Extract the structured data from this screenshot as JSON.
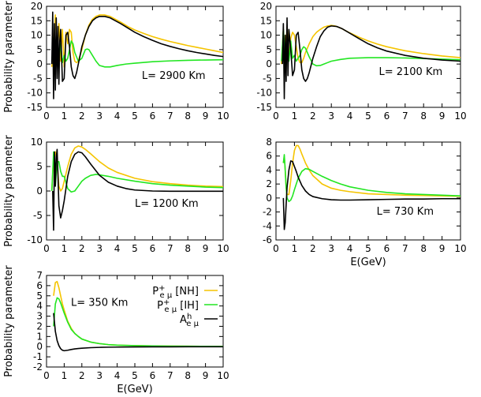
{
  "figure": {
    "ylabel": "Probability parameter",
    "xlabel": "E(GeV)"
  },
  "legend": {
    "entries": [
      {
        "name": "NH",
        "main": "P",
        "sup": "+",
        "sub": "e μ",
        "suffix": " [NH]",
        "color": "#f5c400"
      },
      {
        "name": "IH",
        "main": "P",
        "sup": "+",
        "sub": "e μ",
        "suffix": " [IH]",
        "color": "#22e622"
      },
      {
        "name": "A",
        "main": "A",
        "sup": "h",
        "sub": "e μ",
        "suffix": "",
        "color": "#000000"
      }
    ]
  },
  "chart_data": [
    {
      "type": "line",
      "panel_label": "L= 2900 Km",
      "L_km": 2900,
      "xlim": [
        0,
        10
      ],
      "ylim": [
        -15,
        20
      ],
      "xticks": [
        0,
        1,
        2,
        3,
        4,
        5,
        6,
        7,
        8,
        9,
        10
      ],
      "yticks": [
        -15,
        -10,
        -5,
        0,
        5,
        10,
        15,
        20
      ],
      "show_xlabel": false,
      "show_ylabel": true,
      "series": [
        {
          "name": "P+ [NH]",
          "color": "#f5c400",
          "x": [
            0.3,
            0.4,
            0.5,
            0.6,
            0.7,
            0.8,
            0.9,
            1.0,
            1.1,
            1.2,
            1.3,
            1.4,
            1.5,
            1.6,
            1.7,
            1.8,
            1.9,
            2.0,
            2.2,
            2.4,
            2.6,
            2.8,
            3.0,
            3.3,
            3.6,
            3.9,
            4.2,
            4.6,
            5.0,
            5.5,
            6.0,
            6.5,
            7.0,
            7.5,
            8.0,
            8.5,
            9.0,
            9.5,
            10.0
          ],
          "y": [
            -1,
            6,
            17,
            3,
            14,
            1,
            12,
            -1,
            11,
            7,
            12,
            11,
            4,
            1,
            0.5,
            1,
            3,
            5,
            10,
            13.5,
            15.5,
            16.5,
            17,
            17,
            16.5,
            15.5,
            14.5,
            13,
            11.8,
            10.6,
            9.5,
            8.6,
            7.8,
            7.1,
            6.4,
            5.8,
            5.2,
            4.6,
            4.0
          ]
        },
        {
          "name": "P+ [IH]",
          "color": "#22e622",
          "x": [
            0.3,
            0.4,
            0.5,
            0.6,
            0.7,
            0.8,
            0.9,
            1.0,
            1.1,
            1.2,
            1.3,
            1.4,
            1.5,
            1.6,
            1.8,
            2.0,
            2.2,
            2.3,
            2.4,
            2.6,
            2.8,
            3.0,
            3.3,
            3.6,
            4.0,
            4.5,
            5.0,
            6.0,
            7.0,
            8.0,
            9.0,
            10.0
          ],
          "y": [
            1,
            9,
            0,
            8,
            1,
            7,
            0.5,
            3,
            1,
            2,
            5,
            8,
            7,
            4,
            1,
            2,
            5,
            5.2,
            5,
            3,
            1,
            -0.5,
            -1,
            -1,
            -0.5,
            0,
            0.3,
            0.8,
            1.1,
            1.3,
            1.4,
            1.5
          ]
        },
        {
          "name": "A",
          "color": "#000000",
          "x": [
            0.3,
            0.35,
            0.4,
            0.45,
            0.5,
            0.55,
            0.6,
            0.65,
            0.7,
            0.75,
            0.8,
            0.9,
            1.0,
            1.1,
            1.2,
            1.3,
            1.4,
            1.5,
            1.6,
            1.7,
            1.8,
            1.9,
            2.0,
            2.2,
            2.4,
            2.6,
            2.8,
            3.0,
            3.3,
            3.6,
            3.9,
            4.2,
            4.6,
            5.0,
            5.5,
            6.0,
            6.5,
            7.0,
            7.5,
            8.0,
            8.5,
            9.0,
            9.5,
            10.0
          ],
          "y": [
            0,
            18,
            -12,
            14,
            -9,
            16,
            -5,
            13,
            -7,
            8,
            12,
            -6,
            -5,
            10,
            11,
            6,
            -1,
            -4,
            -5,
            -3,
            0,
            3,
            6,
            10,
            13,
            15,
            16,
            16.5,
            16.5,
            16,
            15,
            14,
            12.5,
            11,
            9.5,
            8.2,
            7,
            6.1,
            5.3,
            4.6,
            4.0,
            3.5,
            3.0,
            2.6
          ]
        }
      ]
    },
    {
      "type": "line",
      "panel_label": "L= 2100 Km",
      "L_km": 2100,
      "xlim": [
        0,
        10
      ],
      "ylim": [
        -15,
        20
      ],
      "xticks": [
        0,
        1,
        2,
        3,
        4,
        5,
        6,
        7,
        8,
        9,
        10
      ],
      "yticks": [
        -15,
        -10,
        -5,
        0,
        5,
        10,
        15,
        20
      ],
      "show_xlabel": false,
      "show_ylabel": false,
      "series": [
        {
          "name": "P+ [NH]",
          "color": "#f5c400",
          "x": [
            0.3,
            0.4,
            0.5,
            0.6,
            0.7,
            0.8,
            0.9,
            1.0,
            1.1,
            1.2,
            1.3,
            1.4,
            1.5,
            1.6,
            1.8,
            2.0,
            2.2,
            2.4,
            2.6,
            2.8,
            3.0,
            3.2,
            3.5,
            4.0,
            4.5,
            5.0,
            5.5,
            6.0,
            7.0,
            8.0,
            9.0,
            10.0
          ],
          "y": [
            0,
            12,
            1,
            13,
            2,
            9,
            11,
            10,
            6,
            2,
            0.5,
            0.5,
            2,
            4,
            7,
            9.5,
            11,
            12,
            12.8,
            13.2,
            13.4,
            13.2,
            12.5,
            10.8,
            9.3,
            8,
            6.9,
            6,
            4.6,
            3.6,
            2.8,
            2.2
          ]
        },
        {
          "name": "P+ [IH]",
          "color": "#22e622",
          "x": [
            0.3,
            0.4,
            0.5,
            0.6,
            0.7,
            0.8,
            0.9,
            1.0,
            1.1,
            1.2,
            1.3,
            1.4,
            1.5,
            1.6,
            1.7,
            1.8,
            2.0,
            2.2,
            2.4,
            2.6,
            2.8,
            3.0,
            3.5,
            4.0,
            5.0,
            6.0,
            7.0,
            8.0,
            9.0,
            10.0
          ],
          "y": [
            1,
            12,
            0,
            9,
            1,
            8,
            2,
            3,
            1,
            2,
            3,
            5,
            6,
            5.5,
            4,
            2.5,
            0,
            -0.6,
            -0.5,
            0,
            0.5,
            1,
            1.6,
            2,
            2.2,
            2.2,
            2.1,
            1.9,
            1.7,
            1.5
          ]
        },
        {
          "name": "A",
          "color": "#000000",
          "x": [
            0.35,
            0.4,
            0.45,
            0.5,
            0.55,
            0.6,
            0.65,
            0.7,
            0.8,
            0.9,
            1.0,
            1.1,
            1.2,
            1.3,
            1.4,
            1.5,
            1.6,
            1.7,
            1.8,
            2.0,
            2.2,
            2.4,
            2.6,
            2.8,
            3.0,
            3.3,
            3.6,
            4.0,
            4.5,
            5.0,
            5.5,
            6.0,
            7.0,
            8.0,
            9.0,
            10.0
          ],
          "y": [
            0,
            14,
            -12,
            10,
            -6,
            16,
            -4,
            12,
            5,
            -4,
            -2,
            10,
            11,
            5,
            -2,
            -5,
            -6,
            -5,
            -3,
            2,
            6,
            9.5,
            11.5,
            12.8,
            13.2,
            13,
            12.2,
            10.7,
            8.8,
            7,
            5.6,
            4.5,
            3,
            2,
            1.4,
            1.0
          ]
        }
      ]
    },
    {
      "type": "line",
      "panel_label": "L= 1200 Km",
      "L_km": 1200,
      "xlim": [
        0,
        10
      ],
      "ylim": [
        -10,
        10
      ],
      "xticks": [
        0,
        1,
        2,
        3,
        4,
        5,
        6,
        7,
        8,
        9,
        10
      ],
      "yticks": [
        -10,
        -5,
        0,
        5,
        10
      ],
      "show_xlabel": false,
      "show_ylabel": true,
      "series": [
        {
          "name": "P+ [NH]",
          "color": "#f5c400",
          "x": [
            0.3,
            0.4,
            0.5,
            0.6,
            0.7,
            0.8,
            0.9,
            1.0,
            1.1,
            1.2,
            1.4,
            1.6,
            1.8,
            2.0,
            2.2,
            2.5,
            3.0,
            3.5,
            4.0,
            5.0,
            6.0,
            7.0,
            8.0,
            9.0,
            10.0
          ],
          "y": [
            0,
            7,
            8,
            6,
            1,
            0,
            0.5,
            2,
            3.5,
            5,
            7.5,
            8.8,
            9.2,
            9,
            8.5,
            7.6,
            6,
            4.7,
            3.8,
            2.6,
            1.9,
            1.5,
            1.2,
            1.0,
            0.9
          ]
        },
        {
          "name": "P+ [IH]",
          "color": "#22e622",
          "x": [
            0.3,
            0.4,
            0.5,
            0.6,
            0.7,
            0.8,
            0.9,
            1.0,
            1.2,
            1.4,
            1.6,
            1.8,
            2.0,
            2.2,
            2.5,
            2.8,
            3.0,
            3.5,
            4.0,
            5.0,
            6.0,
            7.0,
            8.0,
            9.0,
            10.0
          ],
          "y": [
            0,
            8,
            1,
            6,
            6,
            4,
            3,
            3,
            0.5,
            -0.2,
            0,
            1,
            2,
            2.6,
            3.2,
            3.4,
            3.3,
            3,
            2.6,
            2,
            1.5,
            1.2,
            1.0,
            0.8,
            0.7
          ]
        },
        {
          "name": "A",
          "color": "#000000",
          "x": [
            0.35,
            0.4,
            0.45,
            0.5,
            0.55,
            0.6,
            0.65,
            0.7,
            0.8,
            0.9,
            1.0,
            1.1,
            1.2,
            1.4,
            1.6,
            1.8,
            2.0,
            2.2,
            2.5,
            3.0,
            3.5,
            4.0,
            4.5,
            5.0,
            6.0,
            7.0,
            8.0,
            9.0,
            10.0
          ],
          "y": [
            0,
            -8,
            8,
            1,
            7,
            8.5,
            3,
            -3,
            -5.5,
            -4,
            -2,
            0.5,
            3,
            6,
            7.5,
            8,
            7.8,
            7,
            5.5,
            3.2,
            1.8,
            1,
            0.5,
            0.2,
            0,
            -0.05,
            -0.05,
            -0.05,
            -0.05
          ]
        }
      ]
    },
    {
      "type": "line",
      "panel_label": "L= 730 Km",
      "L_km": 730,
      "xlim": [
        0,
        10
      ],
      "ylim": [
        -6,
        8
      ],
      "xticks": [
        0,
        1,
        2,
        3,
        4,
        5,
        6,
        7,
        8,
        9,
        10
      ],
      "yticks": [
        -6,
        -4,
        -2,
        0,
        2,
        4,
        6,
        8
      ],
      "show_xlabel": true,
      "show_ylabel": false,
      "series": [
        {
          "name": "P+ [NH]",
          "color": "#f5c400",
          "x": [
            0.4,
            0.45,
            0.5,
            0.55,
            0.6,
            0.7,
            0.8,
            0.9,
            1.0,
            1.1,
            1.2,
            1.3,
            1.4,
            1.6,
            1.8,
            2.0,
            2.5,
            3.0,
            3.5,
            4.0,
            5.0,
            6.0,
            7.0,
            8.0,
            9.0,
            10.0
          ],
          "y": [
            5,
            6,
            4,
            1.5,
            0.5,
            0.5,
            2.5,
            5,
            6.8,
            7.5,
            7.5,
            7,
            6.3,
            5,
            4,
            3.2,
            2,
            1.4,
            1.1,
            0.9,
            0.6,
            0.5,
            0.4,
            0.35,
            0.3,
            0.25
          ]
        },
        {
          "name": "P+ [IH]",
          "color": "#22e622",
          "x": [
            0.4,
            0.45,
            0.5,
            0.55,
            0.6,
            0.7,
            0.8,
            0.9,
            1.0,
            1.2,
            1.4,
            1.6,
            1.8,
            2.0,
            2.5,
            3.0,
            3.5,
            4.0,
            5.0,
            6.0,
            7.0,
            8.0,
            9.0,
            10.0
          ],
          "y": [
            5,
            6.2,
            4,
            1.5,
            0,
            -0.5,
            -0.3,
            0.3,
            1.2,
            2.8,
            3.8,
            4.2,
            4.1,
            3.8,
            3.1,
            2.5,
            2,
            1.6,
            1.1,
            0.8,
            0.6,
            0.5,
            0.4,
            0.3
          ]
        },
        {
          "name": "A",
          "color": "#000000",
          "x": [
            0.4,
            0.45,
            0.5,
            0.55,
            0.6,
            0.7,
            0.8,
            0.9,
            1.0,
            1.1,
            1.2,
            1.4,
            1.6,
            1.8,
            2.0,
            2.5,
            3.0,
            3.5,
            4.0,
            5.0,
            6.0,
            7.0,
            8.0,
            9.0,
            10.0
          ],
          "y": [
            0,
            -4.5,
            -3.5,
            -1,
            1.5,
            4,
            5.3,
            5.2,
            4.5,
            3.8,
            3,
            1.8,
            1,
            0.5,
            0.2,
            -0.1,
            -0.25,
            -0.3,
            -0.3,
            -0.25,
            -0.2,
            -0.15,
            -0.15,
            -0.1,
            -0.1
          ]
        }
      ]
    },
    {
      "type": "line",
      "panel_label": "L= 350 Km",
      "L_km": 350,
      "xlim": [
        0,
        10
      ],
      "ylim": [
        -2,
        7
      ],
      "xticks": [
        0,
        1,
        2,
        3,
        4,
        5,
        6,
        7,
        8,
        9,
        10
      ],
      "yticks": [
        -2,
        -1,
        0,
        1,
        2,
        3,
        4,
        5,
        6,
        7
      ],
      "show_xlabel": true,
      "show_ylabel": true,
      "series": [
        {
          "name": "P+ [NH]",
          "color": "#f5c400",
          "x": [
            0.4,
            0.5,
            0.6,
            0.7,
            0.8,
            0.9,
            1.0,
            1.2,
            1.4,
            1.6,
            1.8,
            2.0,
            2.5,
            3.0,
            3.5,
            4.0,
            5.0,
            6.0,
            7.0,
            8.0,
            9.0,
            10.0
          ],
          "y": [
            5,
            6.3,
            6.4,
            5.8,
            5,
            4.2,
            3.6,
            2.5,
            1.8,
            1.3,
            1.0,
            0.75,
            0.45,
            0.3,
            0.2,
            0.15,
            0.1,
            0.07,
            0.05,
            0.04,
            0.03,
            0.02
          ]
        },
        {
          "name": "P+ [IH]",
          "color": "#22e622",
          "x": [
            0.4,
            0.5,
            0.6,
            0.7,
            0.8,
            0.9,
            1.0,
            1.2,
            1.4,
            1.6,
            1.8,
            2.0,
            2.5,
            3.0,
            3.5,
            4.0,
            5.0,
            6.0,
            7.0,
            8.0,
            9.0,
            10.0
          ],
          "y": [
            2,
            4.2,
            4.8,
            4.7,
            4.3,
            3.8,
            3.3,
            2.4,
            1.7,
            1.3,
            1.0,
            0.75,
            0.45,
            0.3,
            0.2,
            0.15,
            0.1,
            0.07,
            0.05,
            0.04,
            0.03,
            0.02
          ]
        },
        {
          "name": "A",
          "color": "#000000",
          "x": [
            0.4,
            0.5,
            0.6,
            0.7,
            0.8,
            0.9,
            1.0,
            1.2,
            1.4,
            1.6,
            1.8,
            2.0,
            2.5,
            3.0,
            3.5,
            4.0,
            5.0,
            6.0,
            7.0,
            8.0,
            9.0,
            10.0
          ],
          "y": [
            3.3,
            1.5,
            0.6,
            0.1,
            -0.2,
            -0.35,
            -0.4,
            -0.35,
            -0.28,
            -0.22,
            -0.18,
            -0.15,
            -0.1,
            -0.07,
            -0.05,
            -0.04,
            -0.03,
            -0.02,
            -0.02,
            -0.01,
            -0.01,
            -0.01
          ]
        }
      ]
    }
  ]
}
